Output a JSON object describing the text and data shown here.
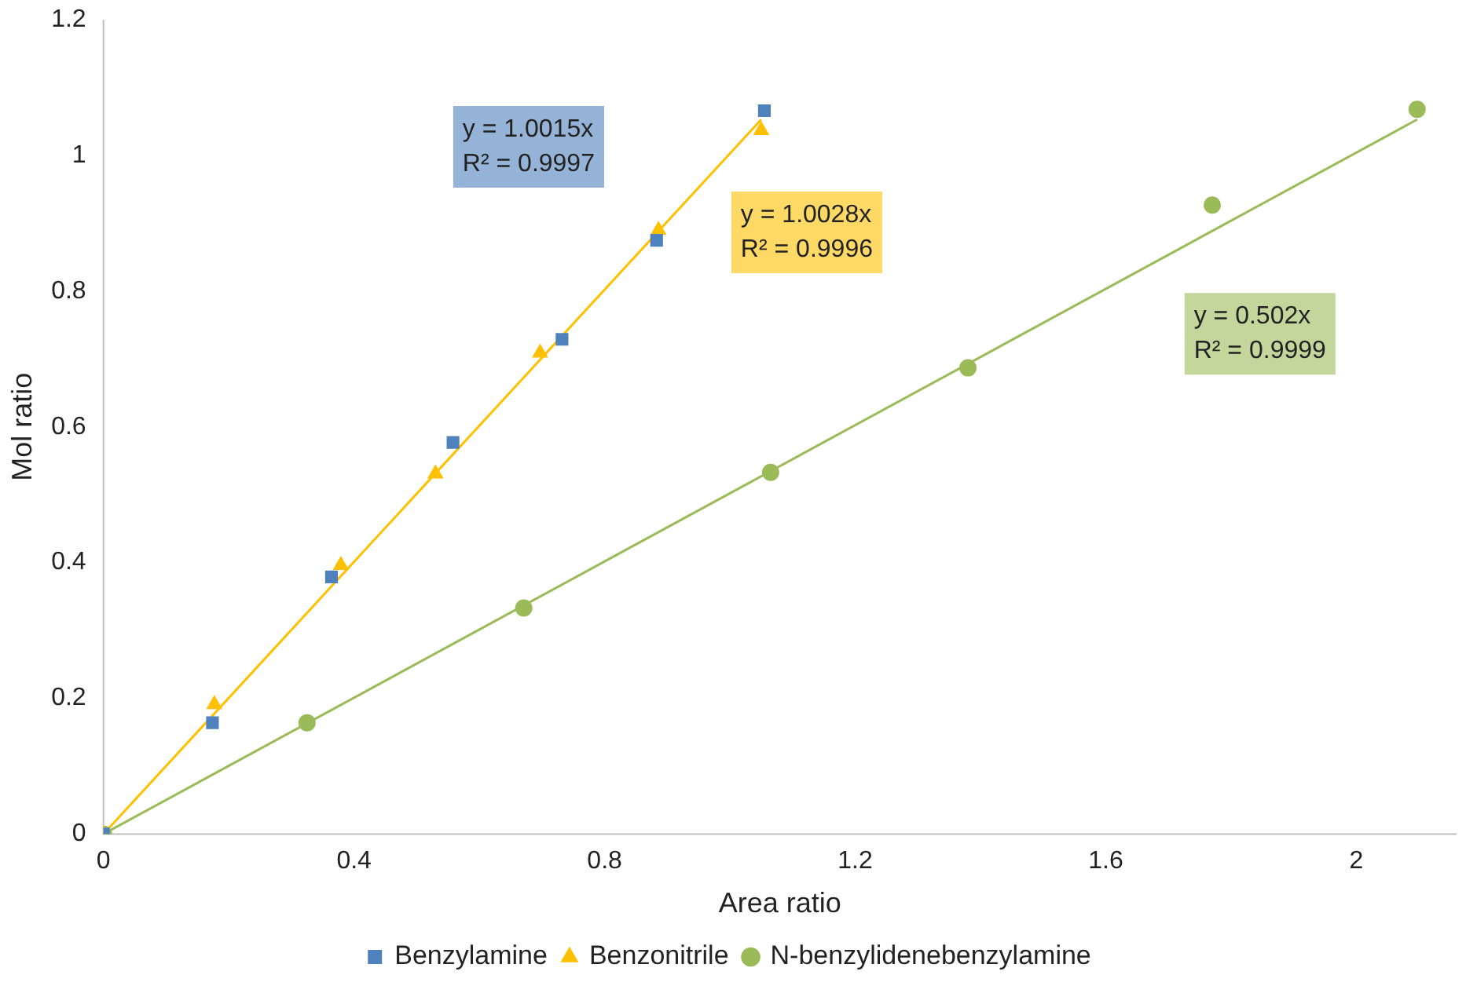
{
  "chart_data": {
    "type": "scatter",
    "xlabel": "Area ratio",
    "ylabel": "Mol ratio",
    "xlim": [
      0,
      2.16
    ],
    "xticks": [
      0,
      0.4,
      0.8,
      1.2,
      1.6,
      2
    ],
    "ylim": [
      0,
      1.2
    ],
    "yticks": [
      0,
      0.2,
      0.4,
      0.6,
      0.8,
      1,
      1.2
    ],
    "grid": false,
    "legend": "bottom",
    "series": [
      {
        "name": "Benzylamine",
        "color": "#4f81bd",
        "marker": "square",
        "x": [
          0,
          0.174,
          0.364,
          0.558,
          0.732,
          0.883,
          1.055
        ],
        "values": [
          0,
          0.164,
          0.379,
          0.577,
          0.729,
          0.875,
          1.066
        ]
      },
      {
        "name": "Benzonitrile",
        "color": "#ffc000",
        "marker": "triangle",
        "x": [
          0,
          0.177,
          0.379,
          0.53,
          0.697,
          0.886,
          1.05
        ],
        "values": [
          0,
          0.191,
          0.396,
          0.531,
          0.709,
          0.89,
          1.037
        ]
      },
      {
        "name": "N-benzylidenebenzylamine",
        "color": "#9bbb59",
        "marker": "circle",
        "x": [
          0,
          0.325,
          0.671,
          1.065,
          1.38,
          1.77,
          2.097
        ],
        "values": [
          0,
          0.164,
          0.333,
          0.533,
          0.687,
          0.927,
          1.068
        ]
      },
      {
        "type": "line",
        "color": "#ffc000",
        "marker": "none",
        "x": [
          0,
          1.05
        ],
        "values": [
          0,
          1.053
        ]
      },
      {
        "type": "line",
        "color": "#9bbb59",
        "marker": "none",
        "x": [
          0,
          2.097
        ],
        "values": [
          0,
          1.053
        ]
      }
    ],
    "annotations": [
      "y = 1.0015x\nR² = 0.9997",
      "y = 1.0028x\nR² = 0.9996",
      "y = 0.502x\nR² = 0.9999"
    ]
  }
}
